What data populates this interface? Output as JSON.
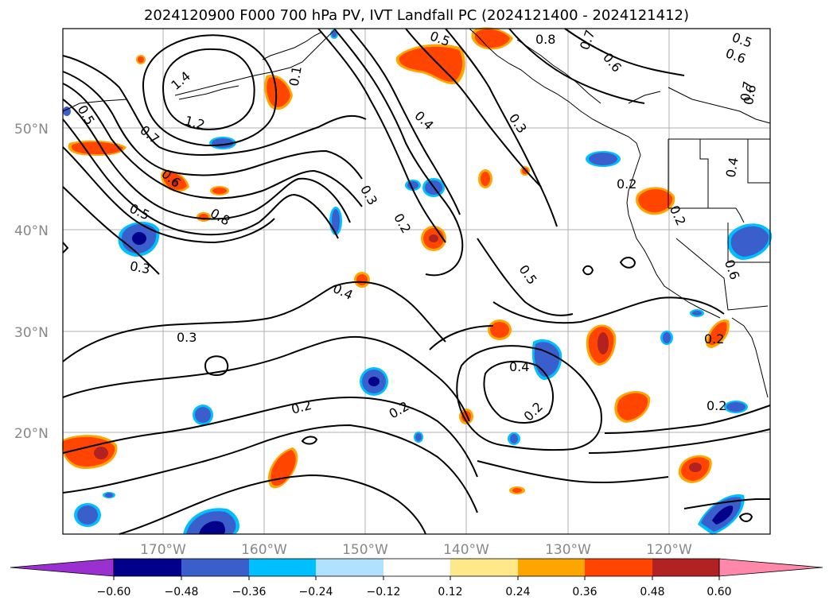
{
  "title": "2024120900 F000 700 hPa PV, IVT Landfall PC (2024121400 - 2024121412)",
  "lat_labels": [
    "50°N",
    "40°N",
    "30°N",
    "20°N"
  ],
  "lon_labels": [
    "170°W",
    "160°W",
    "150°W",
    "140°W",
    "130°W",
    "120°W"
  ],
  "contour_labels": [
    "0.5",
    "0.8",
    "0.7",
    "0.5",
    "0.6",
    "0.6",
    "1.4",
    "0.1",
    "1.2",
    "0.4",
    "0.3",
    "0.7",
    "0.6",
    "0.7",
    "0.5",
    "0.6",
    "0.8",
    "0.5",
    "0.3",
    "0.2",
    "0.2",
    "0.2",
    "0.4",
    "0.3",
    "0.5",
    "0.4",
    "0.6",
    "0.3",
    "0.2",
    "0.4",
    "0.2",
    "0.2",
    "0.2",
    "0.2"
  ],
  "colorbar": {
    "ticks": [
      "−0.60",
      "−0.48",
      "−0.36",
      "−0.24",
      "−0.12",
      "0.12",
      "0.24",
      "0.36",
      "0.48",
      "0.60"
    ],
    "colors": [
      "#9b30d0",
      "#00008b",
      "#3a5fcd",
      "#00bfff",
      "#b0e2ff",
      "#ffffff",
      "#ffe88a",
      "#ffa500",
      "#ff4500",
      "#b22222",
      "#ff88aa"
    ]
  },
  "chart_data": {
    "type": "map",
    "field": "IVT Landfall PC shading with 700 hPa PV contours",
    "lat_range": [
      10,
      60
    ],
    "lon_range": [
      -180,
      -110
    ]
  }
}
